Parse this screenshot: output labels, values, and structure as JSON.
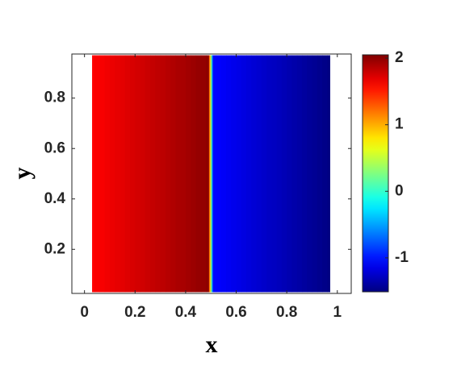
{
  "chart_data": {
    "type": "heatmap",
    "xlabel": "x",
    "ylabel": "y",
    "x": [
      0.03,
      0.05,
      0.07,
      0.09,
      0.11,
      0.13,
      0.15,
      0.17,
      0.19,
      0.21,
      0.23,
      0.25,
      0.27,
      0.29,
      0.31,
      0.33,
      0.35,
      0.37,
      0.39,
      0.41,
      0.43,
      0.45,
      0.47,
      0.49,
      0.495,
      0.5,
      0.505,
      0.51,
      0.53,
      0.55,
      0.57,
      0.59,
      0.61,
      0.63,
      0.65,
      0.67,
      0.69,
      0.71,
      0.73,
      0.75,
      0.77,
      0.79,
      0.81,
      0.83,
      0.85,
      0.87,
      0.89,
      0.91,
      0.93,
      0.95,
      0.97
    ],
    "y": [
      0.03,
      0.97
    ],
    "values": [
      1.6,
      1.62,
      1.63,
      1.65,
      1.67,
      1.69,
      1.7,
      1.72,
      1.74,
      1.76,
      1.77,
      1.79,
      1.81,
      1.83,
      1.84,
      1.86,
      1.88,
      1.9,
      1.91,
      1.93,
      1.95,
      1.97,
      1.98,
      2.0,
      1.2,
      0.4,
      -0.5,
      -1.05,
      -1.07,
      -1.09,
      -1.11,
      -1.13,
      -1.15,
      -1.17,
      -1.19,
      -1.21,
      -1.23,
      -1.25,
      -1.27,
      -1.28,
      -1.3,
      -1.32,
      -1.34,
      -1.36,
      -1.38,
      -1.4,
      -1.42,
      -1.44,
      -1.46,
      -1.48,
      -1.5
    ],
    "xlim": [
      -0.05,
      1.055
    ],
    "ylim": [
      0.025,
      0.975
    ],
    "xticks": [
      0,
      0.2,
      0.4,
      0.6,
      0.8,
      1
    ],
    "yticks": [
      0.2,
      0.4,
      0.6,
      0.8
    ],
    "colormap": "jet",
    "clim": [
      -1.51,
      2.05
    ],
    "cticks": [
      -1,
      0,
      1,
      2
    ]
  }
}
